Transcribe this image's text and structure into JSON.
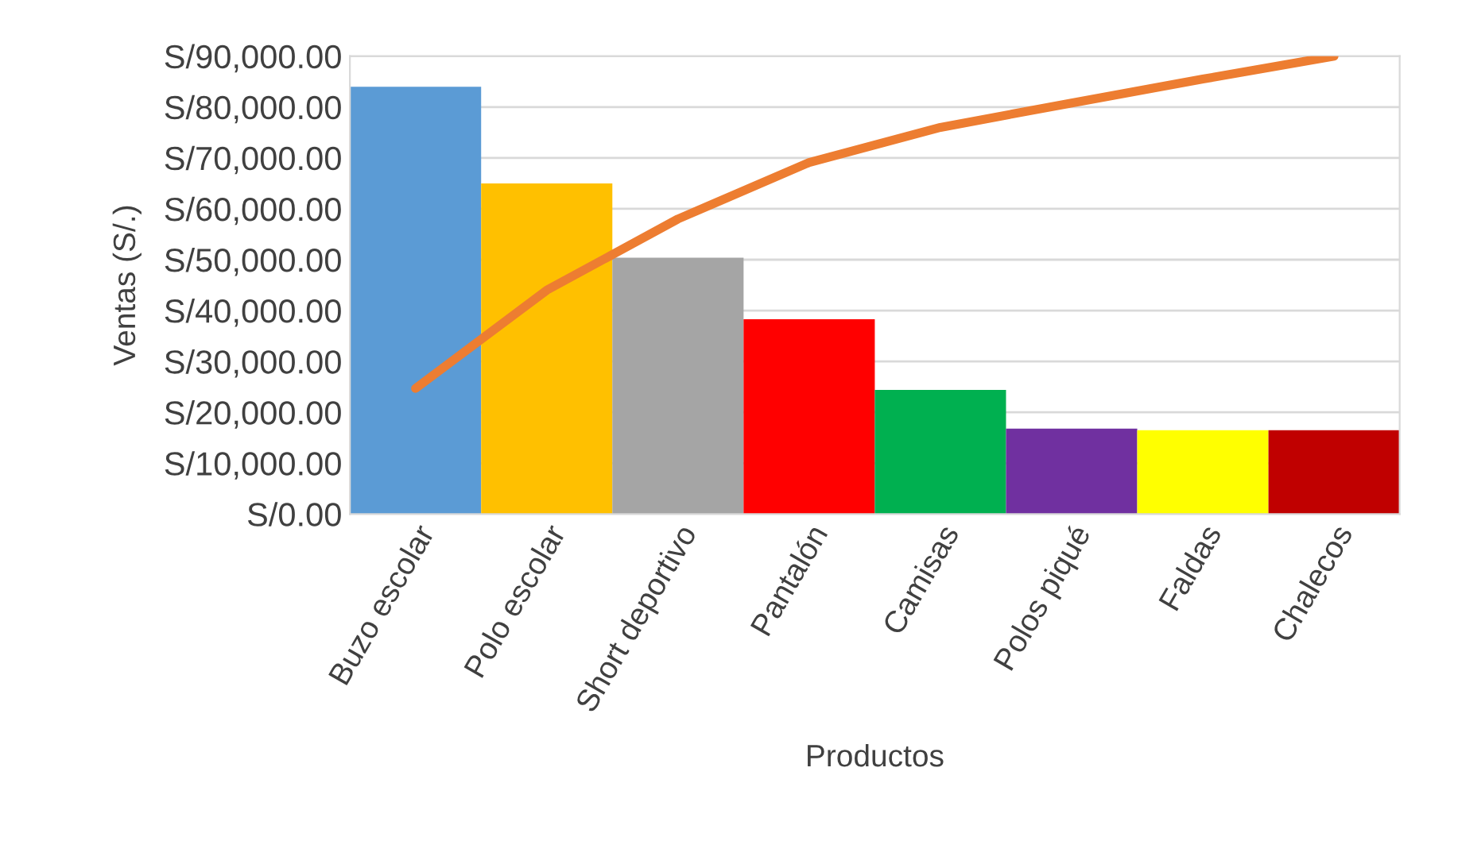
{
  "chart_data": {
    "type": "bar",
    "xlabel": "Productos",
    "ylabel": "Ventas (S/.)",
    "categories": [
      "Buzo escolar",
      "Polo escolar",
      "Short deportivo",
      "Pantalón",
      "Camisas",
      "Polos piqué",
      "Faldas",
      "Chalecos"
    ],
    "series": [
      {
        "colors": [
          "#5b9bd5",
          "#ffc000",
          "#a5a5a5",
          "#ff0000",
          "#00b050",
          "#7030a0",
          "#ffff00",
          "#c00000"
        ],
        "values": [
          84000,
          65000,
          50400,
          38300,
          24400,
          16800,
          16500,
          16500
        ]
      },
      {
        "type": "line",
        "color": "#ed7d31",
        "values": [
          24700,
          44000,
          58000,
          69100,
          76000,
          80800,
          85500,
          90000
        ]
      }
    ],
    "ylim": [
      0,
      90000
    ],
    "yticks": [
      {
        "value": 0,
        "label": "S/0.00"
      },
      {
        "value": 10000,
        "label": "S/10,000.00"
      },
      {
        "value": 20000,
        "label": "S/20,000.00"
      },
      {
        "value": 30000,
        "label": "S/30,000.00"
      },
      {
        "value": 40000,
        "label": "S/40,000.00"
      },
      {
        "value": 50000,
        "label": "S/50,000.00"
      },
      {
        "value": 60000,
        "label": "S/60,000.00"
      },
      {
        "value": 70000,
        "label": "S/70,000.00"
      },
      {
        "value": 80000,
        "label": "S/80,000.00"
      },
      {
        "value": 90000,
        "label": "S/90,000.00"
      }
    ],
    "grid": "y",
    "legend": false
  }
}
